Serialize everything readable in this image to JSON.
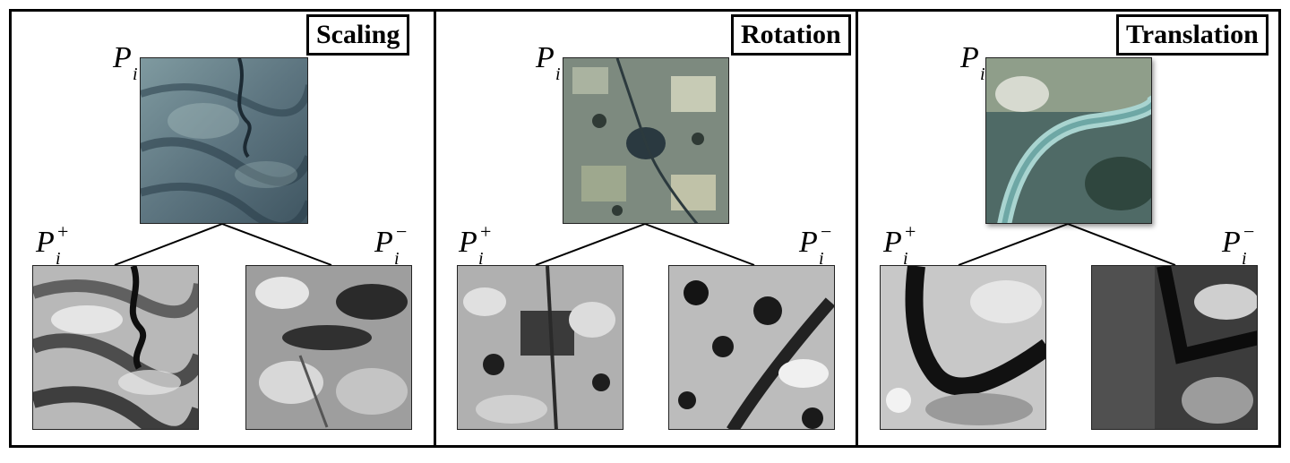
{
  "panels": [
    {
      "title": "Scaling",
      "anchor_label": {
        "main": "P",
        "sub": "i"
      },
      "positive_label": {
        "main": "P",
        "sub": "i",
        "sup": "+"
      },
      "negative_label": {
        "main": "P",
        "sub": "i",
        "sup": "−"
      }
    },
    {
      "title": "Rotation",
      "anchor_label": {
        "main": "P",
        "sub": "i"
      },
      "positive_label": {
        "main": "P",
        "sub": "i",
        "sup": "+"
      },
      "negative_label": {
        "main": "P",
        "sub": "i",
        "sup": "−"
      }
    },
    {
      "title": "Translation",
      "anchor_label": {
        "main": "P",
        "sub": "i"
      },
      "positive_label": {
        "main": "P",
        "sub": "i",
        "sup": "+"
      },
      "negative_label": {
        "main": "P",
        "sub": "i",
        "sup": "−"
      }
    }
  ],
  "colors": {
    "border": "#000000",
    "background": "#ffffff",
    "satellite_scaling": "#5d7580",
    "satellite_rotation": "#6e7d72",
    "satellite_translation": "#4f6a66"
  }
}
